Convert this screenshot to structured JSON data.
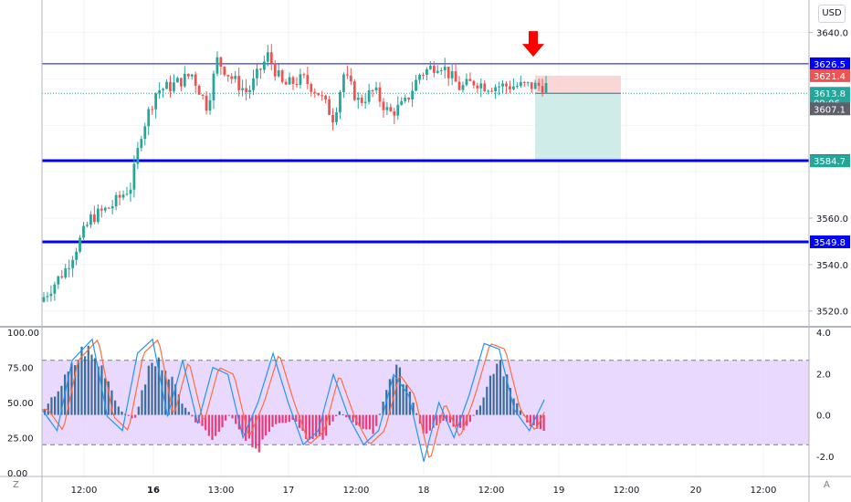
{
  "currency": "USD",
  "corner_left": "Z",
  "corner_right": "A",
  "colors": {
    "up": "#26a69a",
    "down": "#ef5350",
    "level_line": "#0000ff",
    "stop_zone": "#f7cdcd",
    "target_zone": "#cbeae7",
    "stoch_k": "#2196f3",
    "stoch_d": "#ff6d3b",
    "band": "#e1c9ff",
    "marker_arrow": "#ff0000"
  },
  "chart_data": [
    {
      "type": "candlestick",
      "y_ticks": [
        "3640.0",
        "3560.0",
        "3540.0",
        "3520.0"
      ],
      "ylim": [
        3514,
        3654
      ],
      "x_ticks": [
        "12:00",
        "16",
        "13:00",
        "17",
        "12:00",
        "18",
        "12:00",
        "19",
        "12:00",
        "20",
        "12:00"
      ],
      "x_bold_ticks": [
        "16"
      ],
      "price_path": [
        {
          "t": 0.0,
          "p": 3524
        },
        {
          "t": 0.05,
          "p": 3538
        },
        {
          "t": 0.1,
          "p": 3560
        },
        {
          "t": 0.14,
          "p": 3565
        },
        {
          "t": 0.18,
          "p": 3574
        },
        {
          "t": 0.2,
          "p": 3597
        },
        {
          "t": 0.23,
          "p": 3615
        },
        {
          "t": 0.26,
          "p": 3617
        },
        {
          "t": 0.3,
          "p": 3622
        },
        {
          "t": 0.33,
          "p": 3608
        },
        {
          "t": 0.35,
          "p": 3628
        },
        {
          "t": 0.38,
          "p": 3620
        },
        {
          "t": 0.41,
          "p": 3614
        },
        {
          "t": 0.45,
          "p": 3630
        },
        {
          "t": 0.48,
          "p": 3617
        },
        {
          "t": 0.52,
          "p": 3620
        },
        {
          "t": 0.55,
          "p": 3614
        },
        {
          "t": 0.58,
          "p": 3603
        },
        {
          "t": 0.6,
          "p": 3622
        },
        {
          "t": 0.63,
          "p": 3610
        },
        {
          "t": 0.66,
          "p": 3615
        },
        {
          "t": 0.69,
          "p": 3605
        },
        {
          "t": 0.72,
          "p": 3609
        },
        {
          "t": 0.75,
          "p": 3622
        },
        {
          "t": 0.79,
          "p": 3627
        },
        {
          "t": 0.83,
          "p": 3616
        },
        {
          "t": 0.86,
          "p": 3619
        },
        {
          "t": 0.88,
          "p": 3617
        }
      ],
      "candle_count": 140,
      "levels": [
        {
          "label": "3626.5",
          "price": 3626.5,
          "weight": "thin"
        },
        {
          "label": "3584.8",
          "price": 3584.8,
          "weight": "thick"
        },
        {
          "label": "3549.8",
          "price": 3549.8,
          "weight": "thick"
        }
      ],
      "price_labels": [
        {
          "label": "3621.4",
          "price": 3621.4,
          "color": "#ef5350"
        },
        {
          "label": "3613.8",
          "price": 3613.8,
          "color": "#26a69a"
        },
        {
          "label": "09:06",
          "price": 3609.7,
          "color": "#26a69a"
        },
        {
          "label": "3607.1",
          "price": 3607.1,
          "color": "#5d606b"
        },
        {
          "label": "3584.7",
          "price": 3584.7,
          "color": "#26a69a"
        }
      ],
      "current_price": 3613.8,
      "position": {
        "entry": 3613.8,
        "stop": 3621.4,
        "target": 3584.7
      }
    },
    {
      "type": "stochastic-rsi",
      "y_ticks_left": [
        "100.00",
        "75.00",
        "50.00",
        "25.00",
        "0.00"
      ],
      "y_ticks_right": [
        "4.0",
        "2.0",
        "0.0",
        "-2.0"
      ],
      "ylim_left": [
        0,
        100
      ],
      "ylim_right": [
        -2.8,
        4.0
      ],
      "band": [
        80,
        20
      ],
      "k_path": [
        {
          "t": 0.0,
          "v": 45
        },
        {
          "t": 0.03,
          "v": 30
        },
        {
          "t": 0.06,
          "v": 80
        },
        {
          "t": 0.1,
          "v": 95
        },
        {
          "t": 0.13,
          "v": 40
        },
        {
          "t": 0.16,
          "v": 30
        },
        {
          "t": 0.19,
          "v": 85
        },
        {
          "t": 0.22,
          "v": 95
        },
        {
          "t": 0.25,
          "v": 40
        },
        {
          "t": 0.28,
          "v": 80
        },
        {
          "t": 0.31,
          "v": 35
        },
        {
          "t": 0.34,
          "v": 75
        },
        {
          "t": 0.37,
          "v": 70
        },
        {
          "t": 0.4,
          "v": 25
        },
        {
          "t": 0.43,
          "v": 50
        },
        {
          "t": 0.46,
          "v": 85
        },
        {
          "t": 0.49,
          "v": 50
        },
        {
          "t": 0.52,
          "v": 20
        },
        {
          "t": 0.55,
          "v": 30
        },
        {
          "t": 0.58,
          "v": 70
        },
        {
          "t": 0.61,
          "v": 40
        },
        {
          "t": 0.64,
          "v": 20
        },
        {
          "t": 0.67,
          "v": 30
        },
        {
          "t": 0.7,
          "v": 70
        },
        {
          "t": 0.73,
          "v": 55
        },
        {
          "t": 0.76,
          "v": 8
        },
        {
          "t": 0.79,
          "v": 50
        },
        {
          "t": 0.82,
          "v": 25
        },
        {
          "t": 0.85,
          "v": 55
        },
        {
          "t": 0.88,
          "v": 92
        },
        {
          "t": 0.91,
          "v": 88
        },
        {
          "t": 0.94,
          "v": 45
        },
        {
          "t": 0.97,
          "v": 30
        },
        {
          "t": 1.0,
          "v": 52
        }
      ],
      "hist_path": [
        {
          "t": 0.0,
          "v": 0.3
        },
        {
          "t": 0.04,
          "v": 2.0
        },
        {
          "t": 0.08,
          "v": 3.8
        },
        {
          "t": 0.12,
          "v": 2.5
        },
        {
          "t": 0.15,
          "v": 0.3
        },
        {
          "t": 0.18,
          "v": -0.3
        },
        {
          "t": 0.21,
          "v": 2.8
        },
        {
          "t": 0.24,
          "v": 3.0
        },
        {
          "t": 0.27,
          "v": 1.0
        },
        {
          "t": 0.3,
          "v": -0.3
        },
        {
          "t": 0.34,
          "v": -1.5
        },
        {
          "t": 0.37,
          "v": 0.0
        },
        {
          "t": 0.4,
          "v": -1.2
        },
        {
          "t": 0.43,
          "v": -2.0
        },
        {
          "t": 0.46,
          "v": -0.5
        },
        {
          "t": 0.5,
          "v": -0.3
        },
        {
          "t": 0.53,
          "v": -1.5
        },
        {
          "t": 0.56,
          "v": -1.2
        },
        {
          "t": 0.59,
          "v": 0.2
        },
        {
          "t": 0.62,
          "v": -0.5
        },
        {
          "t": 0.66,
          "v": -1.0
        },
        {
          "t": 0.7,
          "v": 2.8
        },
        {
          "t": 0.73,
          "v": 1.5
        },
        {
          "t": 0.76,
          "v": -1.3
        },
        {
          "t": 0.8,
          "v": -0.3
        },
        {
          "t": 0.84,
          "v": -1.0
        },
        {
          "t": 0.88,
          "v": 1.0
        },
        {
          "t": 0.91,
          "v": 3.2
        },
        {
          "t": 0.94,
          "v": 1.0
        },
        {
          "t": 0.97,
          "v": -0.6
        },
        {
          "t": 1.0,
          "v": -0.8
        }
      ]
    }
  ]
}
